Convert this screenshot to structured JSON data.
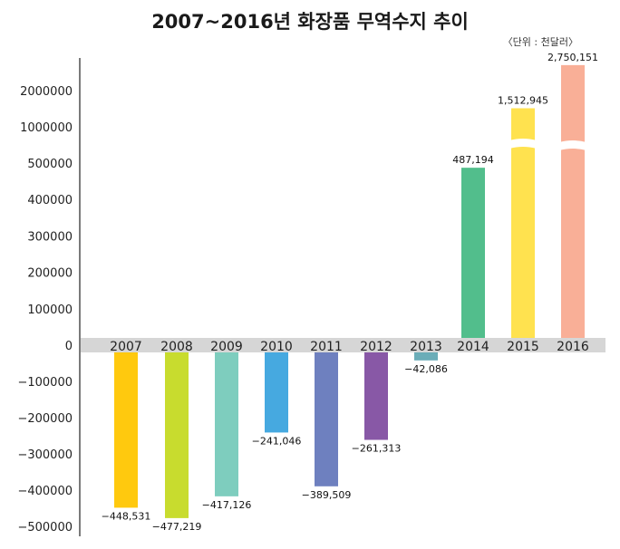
{
  "chart_data": {
    "type": "bar",
    "title": "2007~2016년 화장품 무역수지 추이",
    "unit_note": "〈단위 : 천달러〉",
    "categories": [
      "2007",
      "2008",
      "2009",
      "2010",
      "2011",
      "2012",
      "2013",
      "2014",
      "2015",
      "2016"
    ],
    "values": [
      -448531,
      -477219,
      -417126,
      -241046,
      -389509,
      -261313,
      -42086,
      487194,
      1512945,
      2750151
    ],
    "data_labels": [
      "−448,531",
      "−477,219",
      "−417,126",
      "−241,046",
      "−389,509",
      "−261,313",
      "−42,086",
      "487,194",
      "1,512,945",
      "2,750,151"
    ],
    "colors": [
      "#FFC90E",
      "#C8DC2E",
      "#7ECDBE",
      "#46A9E0",
      "#6E80BF",
      "#8858A6",
      "#6BADB8",
      "#52BE8C",
      "#FFE24F",
      "#F9AF97"
    ],
    "y_ticks": [
      2000000,
      1000000,
      500000,
      400000,
      300000,
      200000,
      100000,
      0,
      -100000,
      -200000,
      -300000,
      -400000,
      -500000
    ],
    "y_tick_labels": [
      "2000000",
      "1000000",
      "500000",
      "400000",
      "300000",
      "200000",
      "100000",
      "0",
      "−100000",
      "−200000",
      "−300000",
      "−400000",
      "−500000"
    ],
    "axis_breaks": true,
    "grid": false,
    "legend": "none"
  }
}
